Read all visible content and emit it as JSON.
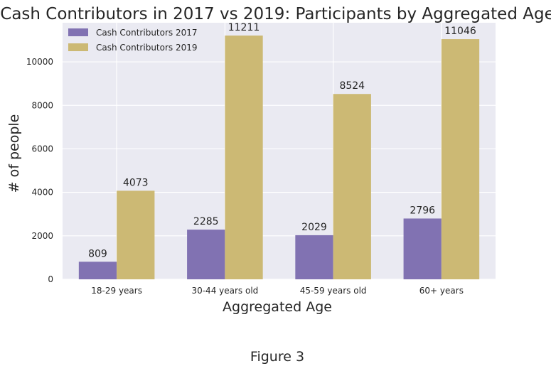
{
  "chart_data": {
    "type": "bar",
    "title": "Cash Contributors in 2017 vs 2019: Participants by Aggregated Age",
    "xlabel": "Aggregated Age",
    "ylabel": "# of people",
    "categories": [
      "18-29 years",
      "30-44 years old",
      "45-59 years old",
      "60+ years"
    ],
    "series": [
      {
        "name": "Cash Contributors 2017",
        "values": [
          809,
          2285,
          2029,
          2796
        ],
        "color": "#8172b2"
      },
      {
        "name": "Cash Contributors 2019",
        "values": [
          4073,
          11211,
          8524,
          11046
        ],
        "color": "#ccb974"
      }
    ],
    "ylim": [
      0,
      11800
    ],
    "yticks": [
      0,
      2000,
      4000,
      6000,
      8000,
      10000
    ],
    "grid": true,
    "legend_position": "top-left",
    "background": "#eaeaf2"
  },
  "caption": "Figure 3"
}
